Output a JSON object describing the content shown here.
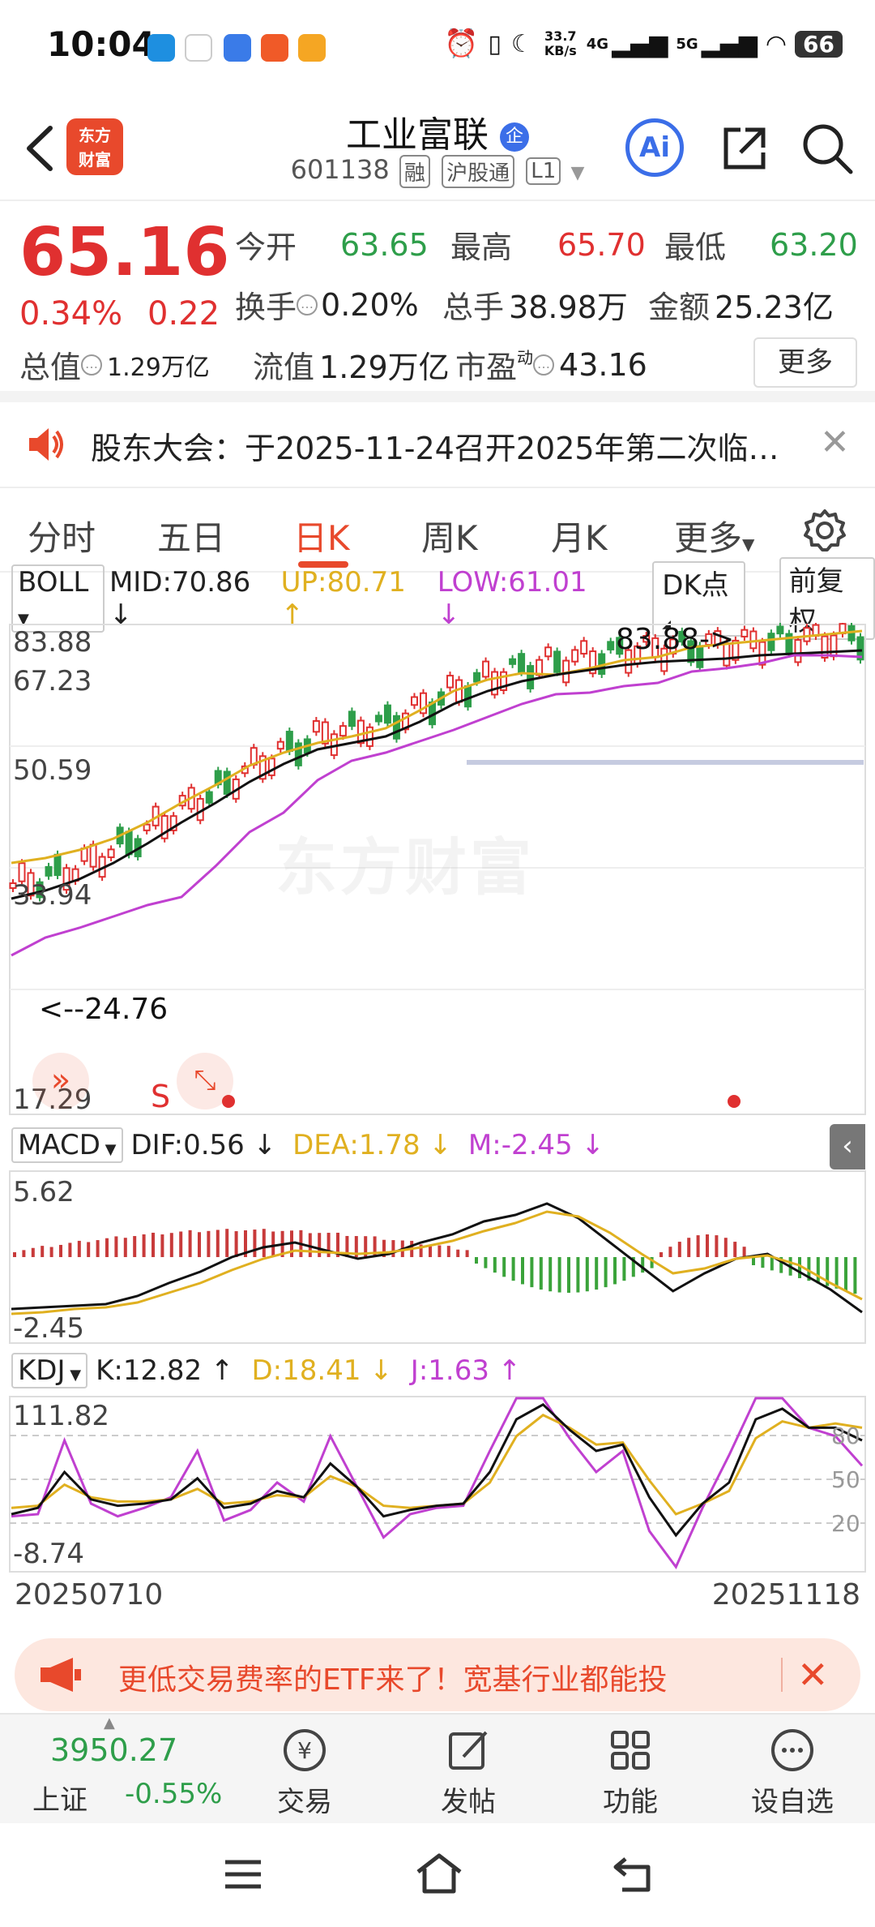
{
  "status": {
    "time": "10:04",
    "net_speed_top": "33.7",
    "net_speed_bottom": "KB/s",
    "signal1": "4G",
    "signal2": "5G",
    "battery": "66"
  },
  "header": {
    "logo_line1": "东方",
    "logo_line2": "财富",
    "stock_name": "工业富联",
    "name_badge": "企",
    "code": "601138",
    "tags": [
      "融",
      "沪股通",
      "L1"
    ],
    "ai_label": "Ai"
  },
  "quote": {
    "price": "65.16",
    "pct": "0.34%",
    "chg": "0.22",
    "open_label": "今开",
    "open": "63.65",
    "high_label": "最高",
    "high": "65.70",
    "low_label": "最低",
    "low": "63.20",
    "turnover_label": "换手",
    "turnover": "0.20%",
    "volume_label": "总手",
    "volume": "38.98万",
    "amount_label": "金额",
    "amount": "25.23亿",
    "mktcap_label": "总值",
    "mktcap": "1.29万亿",
    "float_label": "流值",
    "float": "1.29万亿",
    "pe_label": "市盈",
    "pe_sup": "动",
    "pe": "43.16",
    "more_label": "更多"
  },
  "notice": {
    "text": "股东大会：于2025-11-24召开2025年第二次临…"
  },
  "tabs": [
    "分时",
    "五日",
    "日K",
    "周K",
    "月K",
    "更多"
  ],
  "active_tab": "日K",
  "boll": {
    "name": "BOLL",
    "mid": "MID:70.86",
    "up": "UP:80.71",
    "low": "LOW:61.01",
    "dk_label": "DK点",
    "adjust_label": "前复权",
    "y_labels": [
      "83.88",
      "67.23",
      "50.59",
      "33.94",
      "17.29"
    ],
    "max_annotation": "83.88->",
    "min_annotation": "<--24.76",
    "signal_label": "S"
  },
  "macd": {
    "name": "MACD",
    "dif": "DIF:0.56",
    "dea": "DEA:1.78",
    "m": "M:-2.45",
    "y_labels": [
      "5.62",
      "-2.45"
    ]
  },
  "kdj": {
    "name": "KDJ",
    "k": "K:12.82",
    "d": "D:18.41",
    "j": "J:1.63",
    "y_labels": [
      "111.82",
      "-8.74"
    ],
    "levels": [
      "80",
      "50",
      "20"
    ]
  },
  "dates": {
    "start": "20250710",
    "end": "20251118"
  },
  "watermark": "东方财富",
  "banner": {
    "text": "更低交易费率的ETF来了！宽基行业都能投"
  },
  "index": {
    "value": "3950.27",
    "name": "上证",
    "chg": "-0.55%"
  },
  "nav": [
    "交易",
    "发帖",
    "功能",
    "设自选"
  ],
  "colors": {
    "up": "#e03030",
    "down": "#2e9e4a",
    "brand": "#e8492c",
    "boll_up": "#e0b020",
    "boll_low": "#c040d0"
  }
}
